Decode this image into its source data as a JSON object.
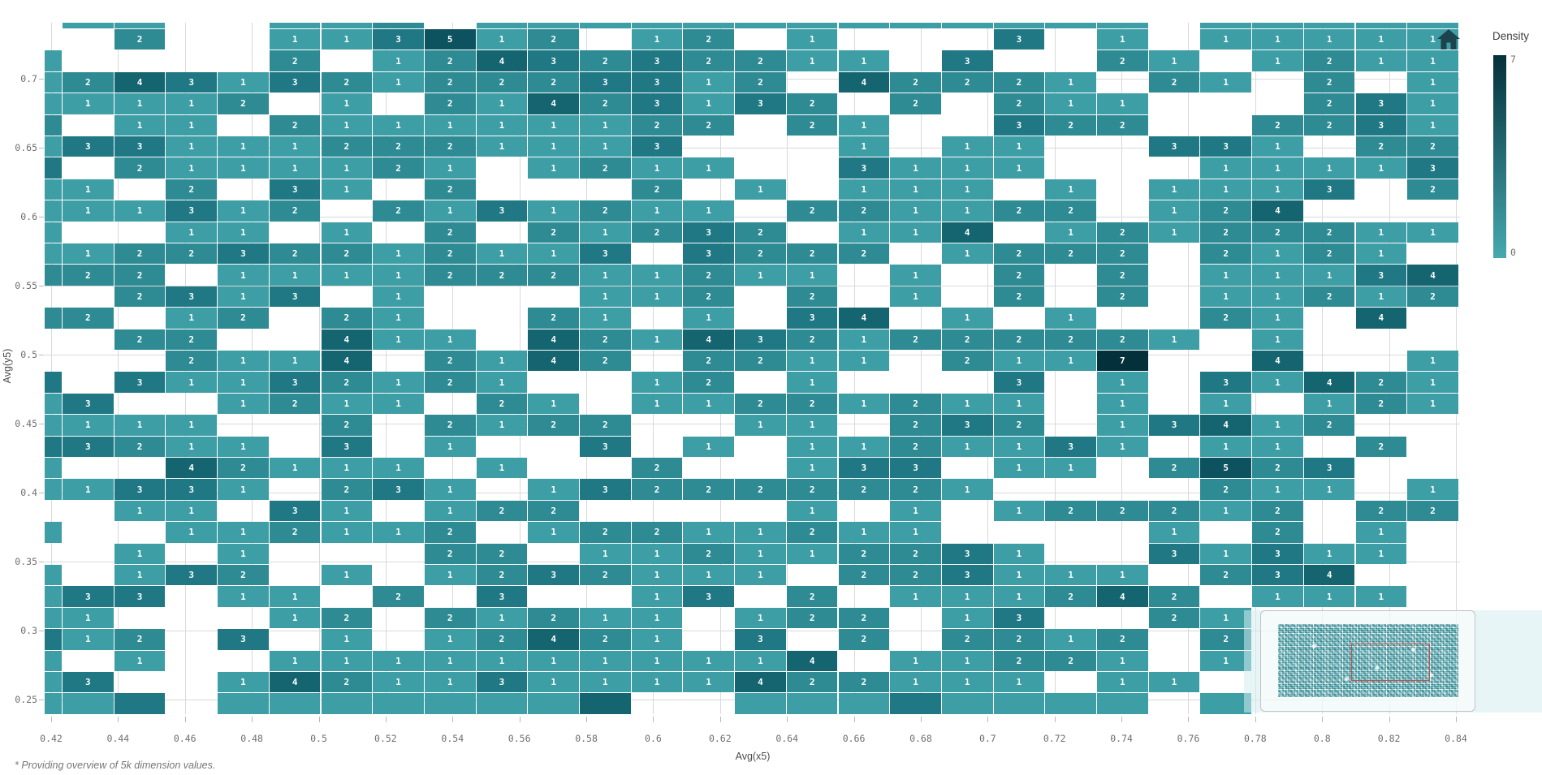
{
  "app": {
    "footnote": "* Providing overview of 5k dimension values.",
    "toolbar": {
      "home_tooltip": "Reset zoom"
    }
  },
  "colors": {
    "value_1": "#3D9EA6",
    "value_2": "#2E8B94",
    "value_3": "#1F7883",
    "value_4": "#156571",
    "value_5": "#0C525F",
    "value_6": "#073F4B",
    "value_7": "#04303B",
    "legend_min_color": "#46A9AF",
    "gridline": "#D9D9D9",
    "viewport_red": "#C9504C",
    "home_icon_color": "#1D444E"
  },
  "chart_data": {
    "type": "heatmap",
    "title": "",
    "xlabel": "Avg(x5)",
    "ylabel": "Avg(y5)",
    "legend": {
      "title": "Density",
      "max_label": "7",
      "min_label": "0",
      "position": "top-right"
    },
    "x_ticks": [
      "0.42",
      "0.44",
      "0.46",
      "0.48",
      "0.5",
      "0.52",
      "0.54",
      "0.56",
      "0.58",
      "0.6",
      "0.62",
      "0.64",
      "0.66",
      "0.68",
      "0.7",
      "0.72",
      "0.74",
      "0.76",
      "0.78",
      "0.8",
      "0.82",
      "0.84"
    ],
    "y_ticks": [
      "0.7",
      "0.65",
      "0.6",
      "0.55",
      "0.5",
      "0.45",
      "0.4",
      "0.35",
      "0.3",
      "0.25"
    ],
    "xlim": [
      0.42,
      0.84
    ],
    "ylim": [
      0.25,
      0.7
    ],
    "value_range": [
      0,
      7
    ],
    "grid_on": true,
    "cell_legend": "rows top-to-bottom; each char one bin: '.'=empty, digit=density count; first char and first row are edge slivers clipped by the plot border",
    "grid_rows": [
      ".11..112.1111111111111.11111",
      "..2..113512.12.1...3.1.11111",
      "1....2.1243232211.3..21.1211",
      "124313212223312.42221.21.2.1",
      "11112.1.21423132.2.211...231",
      "2.11.211111122.21..322..2231",
      "1331112221113...1.11..331.22",
      "3.2111121.1211..3111...11113",
      "11.2.31.2...2.1.111.1.1113.2",
      "111312.2131211.221122.124...",
      "1..11.1.2.21232.114.12122211",
      "112232212113.3222.1222.2121.",
      "222.111122211211.1.2.2.11134",
      "..2313.1...112.2.1.2.2.11212",
      "22.12.21..21.1.34.1.1..21.4.",
      "..22..411.4214321222221.1...",
      "...2114.2142.2211.2117..4..1",
      "3.31132121..12.1...3.1.31421",
      "13..1211.21.11221211.1.1.121",
      "1111..2.2122..11.232.13412..",
      "33211.3.1..3.1.1121131.11.2.",
      "1..42111.1..2..133.11.2523..",
      "11331.231.132222221....211.1",
      "..11.31.122....1.1.122212.22",
      "1..112112.12211211....1.2.1.",
      "..1.1...22.112112231..31311.",
      "1.132.1.1232111.223111.234..",
      "133.11.2.3..13.2.111242.111.",
      "11...12.21211.122.13..21....",
      "312.3.1.12421.3.2.2212.2....",
      "1.1..11111111114.11221.1....",
      "13..1421131111422111.11.....",
      "113.11111114..11131111.1...."
    ]
  }
}
